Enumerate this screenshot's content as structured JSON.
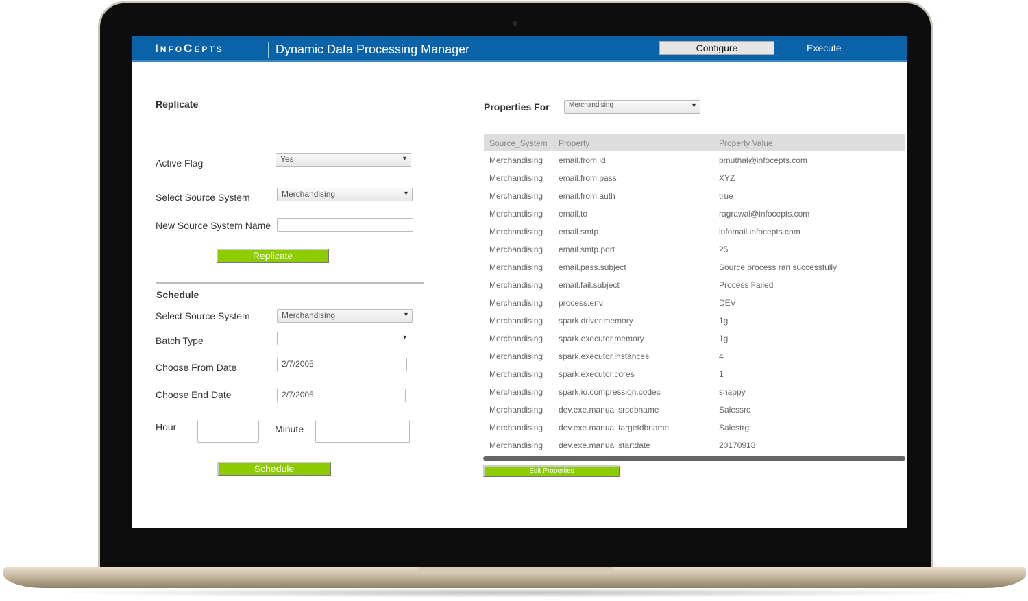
{
  "header": {
    "logo": "InfoCepts",
    "title": "Dynamic Data Processing Manager",
    "configure": "Configure",
    "execute": "Execute"
  },
  "replicate": {
    "heading": "Replicate",
    "active_flag_label": "Active Flag",
    "active_flag": "Yes",
    "source_label": "Select Source System",
    "source": "Merchandising",
    "new_name_label": "New Source System Name",
    "new_name": "",
    "button": "Replicate"
  },
  "schedule": {
    "heading": "Schedule",
    "source_label": "Select Source System",
    "source": "Merchandising",
    "batch_label": "Batch Type",
    "batch": "",
    "from_label": "Choose From Date",
    "from": "2/7/2005",
    "end_label": "Choose End Date",
    "end": "2/7/2005",
    "hour_label": "Hour",
    "hour": "",
    "minute_label": "Minute",
    "minute": "",
    "button": "Schedule"
  },
  "properties": {
    "label": "Properties For",
    "selected": "Merchandising",
    "columns": [
      "Source_System",
      "Property",
      "Property Value"
    ],
    "rows": [
      [
        "Merchandising",
        "email.from.id",
        "pmuthal@infocepts.com"
      ],
      [
        "Merchandising",
        "email.from.pass",
        "XYZ"
      ],
      [
        "Merchandising",
        "email.from.auth",
        "true"
      ],
      [
        "Merchandising",
        "email.to",
        "ragrawal@infocepts.com"
      ],
      [
        "Merchandising",
        "email.smtp",
        "infomail.infocepts.com"
      ],
      [
        "Merchandising",
        "email.smtp.port",
        "25"
      ],
      [
        "Merchandising",
        "email.pass.subject",
        "Source process ran successfully"
      ],
      [
        "Merchandising",
        "email.fail.subject",
        "Process Failed"
      ],
      [
        "Merchandising",
        "process.env",
        "DEV"
      ],
      [
        "Merchandising",
        "spark.driver.memory",
        "1g"
      ],
      [
        "Merchandising",
        "spark.executor.memory",
        "1g"
      ],
      [
        "Merchandising",
        "spark.executor.instances",
        "4"
      ],
      [
        "Merchandising",
        "spark.executor.cores",
        "1"
      ],
      [
        "Merchandising",
        "spark.io.compression.codec",
        "snappy"
      ],
      [
        "Merchandising",
        "dev.exe.manual.srcdbname",
        "Salessrc"
      ],
      [
        "Merchandising",
        "dev.exe.manual.targetdbname",
        "Salestrgt"
      ],
      [
        "Merchandising",
        "dev.exe.manual.startdate",
        "20170918"
      ]
    ],
    "edit_button": "Edit Properties"
  },
  "colors": {
    "header": "#0a62a8",
    "button": "#8ccc00"
  }
}
